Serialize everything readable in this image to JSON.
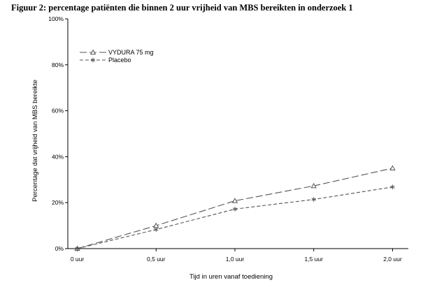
{
  "title": "Figuur 2: percentage patiënten die binnen 2 uur vrijheid van MBS bereikten in onderzoek 1",
  "chart_data": {
    "type": "line",
    "title": "Figuur 2: percentage patiënten die binnen 2 uur vrijheid van MBS bereikten in onderzoek 1",
    "xlabel": "Tijd in uren vanaf toediening",
    "ylabel": "Percentage dat vrijheid van MBS bereikte",
    "categories": [
      "0 uur",
      "0,5 uur",
      "1,0 uur",
      "1,5 uur",
      "2,0 uur"
    ],
    "x": [
      0,
      0.5,
      1.0,
      1.5,
      2.0
    ],
    "xlim": [
      -0.06,
      2.1
    ],
    "ylim": [
      0,
      100
    ],
    "y_ticks": [
      "0%",
      "20%",
      "40%",
      "60%",
      "80%",
      "100%"
    ],
    "legend_position": "top-left",
    "grid": false,
    "series": [
      {
        "name": "VYDURA 75 mg",
        "values": [
          0,
          10.0,
          20.8,
          27.3,
          35.0
        ],
        "marker": "triangle",
        "dash": "long-dash",
        "color": "#555555"
      },
      {
        "name": "Placebo",
        "values": [
          0,
          8.3,
          17.2,
          21.4,
          26.8
        ],
        "marker": "asterisk",
        "dash": "short-dash",
        "color": "#555555"
      }
    ]
  }
}
